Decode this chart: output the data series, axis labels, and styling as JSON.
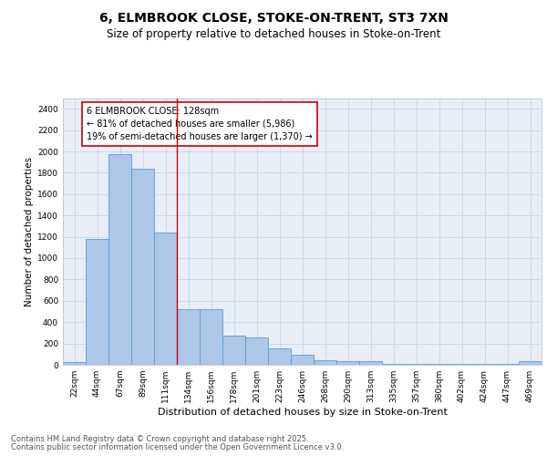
{
  "title_line1": "6, ELMBROOK CLOSE, STOKE-ON-TRENT, ST3 7XN",
  "title_line2": "Size of property relative to detached houses in Stoke-on-Trent",
  "xlabel": "Distribution of detached houses by size in Stoke-on-Trent",
  "ylabel": "Number of detached properties",
  "categories": [
    "22sqm",
    "44sqm",
    "67sqm",
    "89sqm",
    "111sqm",
    "134sqm",
    "156sqm",
    "178sqm",
    "201sqm",
    "223sqm",
    "246sqm",
    "268sqm",
    "290sqm",
    "313sqm",
    "335sqm",
    "357sqm",
    "380sqm",
    "402sqm",
    "424sqm",
    "447sqm",
    "469sqm"
  ],
  "values": [
    25,
    1180,
    1975,
    1840,
    1240,
    520,
    520,
    270,
    260,
    155,
    90,
    45,
    30,
    30,
    5,
    5,
    5,
    5,
    5,
    5,
    30
  ],
  "bar_color": "#aec6e8",
  "bar_edge_color": "#5b9bd5",
  "vline_color": "#cc0000",
  "annotation_text": "6 ELMBROOK CLOSE: 128sqm\n← 81% of detached houses are smaller (5,986)\n19% of semi-detached houses are larger (1,370) →",
  "annotation_box_color": "#ffffff",
  "annotation_box_edge_color": "#cc0000",
  "ylim": [
    0,
    2500
  ],
  "yticks": [
    0,
    200,
    400,
    600,
    800,
    1000,
    1200,
    1400,
    1600,
    1800,
    2000,
    2200,
    2400
  ],
  "grid_color": "#c8d4e8",
  "bg_color": "#e8eef8",
  "footer_line1": "Contains HM Land Registry data © Crown copyright and database right 2025.",
  "footer_line2": "Contains public sector information licensed under the Open Government Licence v3.0.",
  "title_fontsize": 10,
  "subtitle_fontsize": 8.5,
  "axis_label_fontsize": 7.5,
  "tick_fontsize": 6.5,
  "annotation_fontsize": 7,
  "footer_fontsize": 6
}
